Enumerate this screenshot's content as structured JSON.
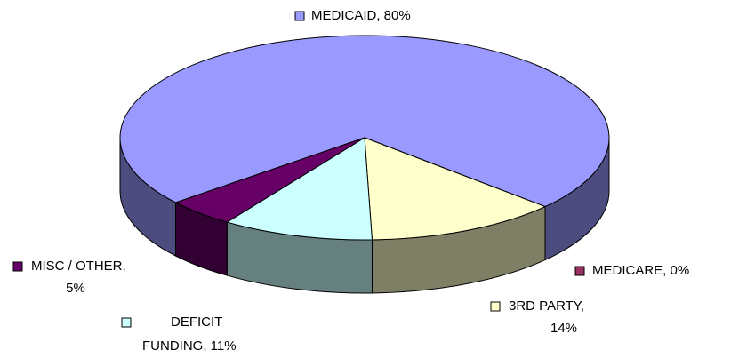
{
  "chart_data": {
    "type": "pie3d",
    "values": [
      80,
      0,
      14,
      11,
      5
    ],
    "labels": [
      [
        "MEDICAID, 80%"
      ],
      [
        "MEDICARE, 0%"
      ],
      [
        "3RD PARTY,",
        "14%"
      ],
      [
        "DEFICIT",
        "FUNDING, 11%"
      ],
      [
        "MISC  / OTHER,",
        "5%"
      ]
    ],
    "colors": [
      "#9999ff",
      "#993366",
      "#ffffcc",
      "#ccffff",
      "#660066"
    ]
  }
}
